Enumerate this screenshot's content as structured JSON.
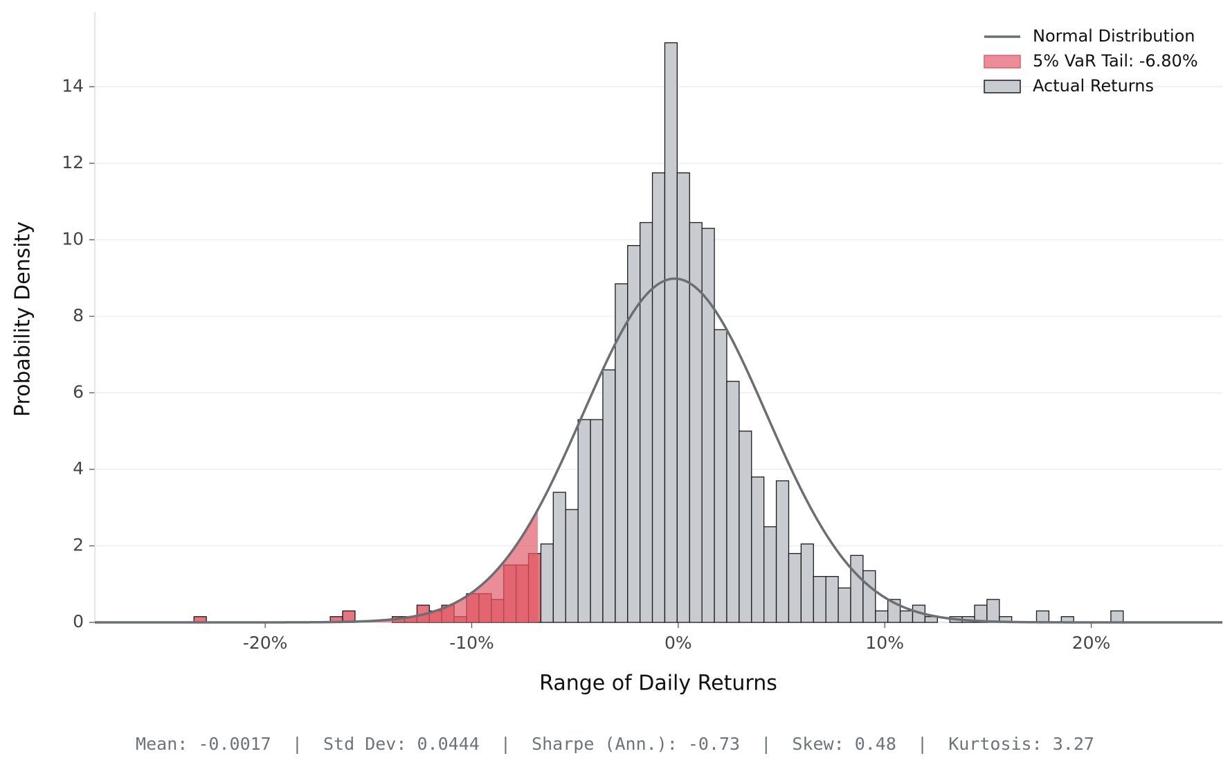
{
  "chart_data": {
    "type": "histogram",
    "x_label": "Range of Daily Returns",
    "y_label": "Probability Density",
    "bins": [
      -0.2345,
      -0.2285,
      -0.2225,
      -0.2165,
      -0.2105,
      -0.2045,
      -0.1985,
      -0.1925,
      -0.1865,
      -0.1805,
      -0.1745,
      -0.1685,
      -0.1625,
      -0.1565,
      -0.1505,
      -0.1445,
      -0.1385,
      -0.1325,
      -0.1265,
      -0.1205,
      -0.1145,
      -0.1085,
      -0.1025,
      -0.0965,
      -0.0905,
      -0.0845,
      -0.0785,
      -0.0725,
      -0.0665,
      -0.0605,
      -0.0545,
      -0.0485,
      -0.0425,
      -0.0365,
      -0.0305,
      -0.0245,
      -0.0185,
      -0.0125,
      -0.0065,
      -0.0005,
      0.0055,
      0.0115,
      0.0175,
      0.0235,
      0.0295,
      0.0355,
      0.0415,
      0.0475,
      0.0535,
      0.0595,
      0.0655,
      0.0715,
      0.0775,
      0.0835,
      0.0895,
      0.0955,
      0.1015,
      0.1075,
      0.1135,
      0.1195,
      0.1255,
      0.1315,
      0.1375,
      0.1435,
      0.1495,
      0.1555,
      0.1615,
      0.1675,
      0.1735,
      0.1795,
      0.1855,
      0.1915,
      0.1975,
      0.2035,
      0.2095,
      0.2155
    ],
    "series": [
      {
        "name": "Actual Returns",
        "color": "#c8ccd1",
        "edgecolor": "#1a1a1a",
        "values": [
          0.15,
          0,
          0,
          0,
          0,
          0,
          0,
          0,
          0,
          0,
          0,
          0.15,
          0.3,
          0,
          0,
          0,
          0.15,
          0.15,
          0.45,
          0.3,
          0.45,
          0.15,
          0.75,
          0.75,
          0.6,
          1.5,
          1.5,
          1.8,
          2.05,
          3.4,
          2.95,
          5.3,
          5.3,
          6.6,
          8.85,
          9.85,
          10.45,
          11.75,
          15.15,
          11.75,
          10.45,
          10.3,
          7.65,
          6.3,
          5.0,
          3.8,
          2.5,
          3.7,
          1.8,
          2.05,
          1.2,
          1.2,
          0.9,
          1.75,
          1.35,
          0.3,
          0.6,
          0.3,
          0.45,
          0.15,
          0,
          0.15,
          0.15,
          0.45,
          0.6,
          0.15,
          0,
          0,
          0.3,
          0,
          0.15,
          0,
          0,
          0,
          0.3
        ]
      }
    ],
    "normal": {
      "name": "Normal Distribution",
      "color": "#6b6e73"
    },
    "var_tail": {
      "name": "5% VaR Tail: -6.80%",
      "value": -0.068,
      "color": "#e35d6a"
    },
    "xlim": [
      -0.2825,
      0.2635
    ],
    "ylim": [
      0,
      15.96
    ],
    "xticks": [
      {
        "value": -0.2,
        "label": "-20%"
      },
      {
        "value": -0.1,
        "label": "-10%"
      },
      {
        "value": 0,
        "label": "0%"
      },
      {
        "value": 0.1,
        "label": "10%"
      },
      {
        "value": 0.2,
        "label": "20%"
      }
    ],
    "yticks": [
      0,
      2,
      4,
      6,
      8,
      10,
      12,
      14
    ],
    "grid": true,
    "legend": "upper right",
    "stats": [
      {
        "label": "Mean:",
        "value": -0.0017
      },
      {
        "label": "Std Dev:",
        "value": 0.0444
      },
      {
        "label": "Sharpe (Ann.):",
        "value": -0.73
      },
      {
        "label": "Skew:",
        "value": 0.48
      },
      {
        "label": "Kurtosis:",
        "value": 3.27
      }
    ]
  }
}
